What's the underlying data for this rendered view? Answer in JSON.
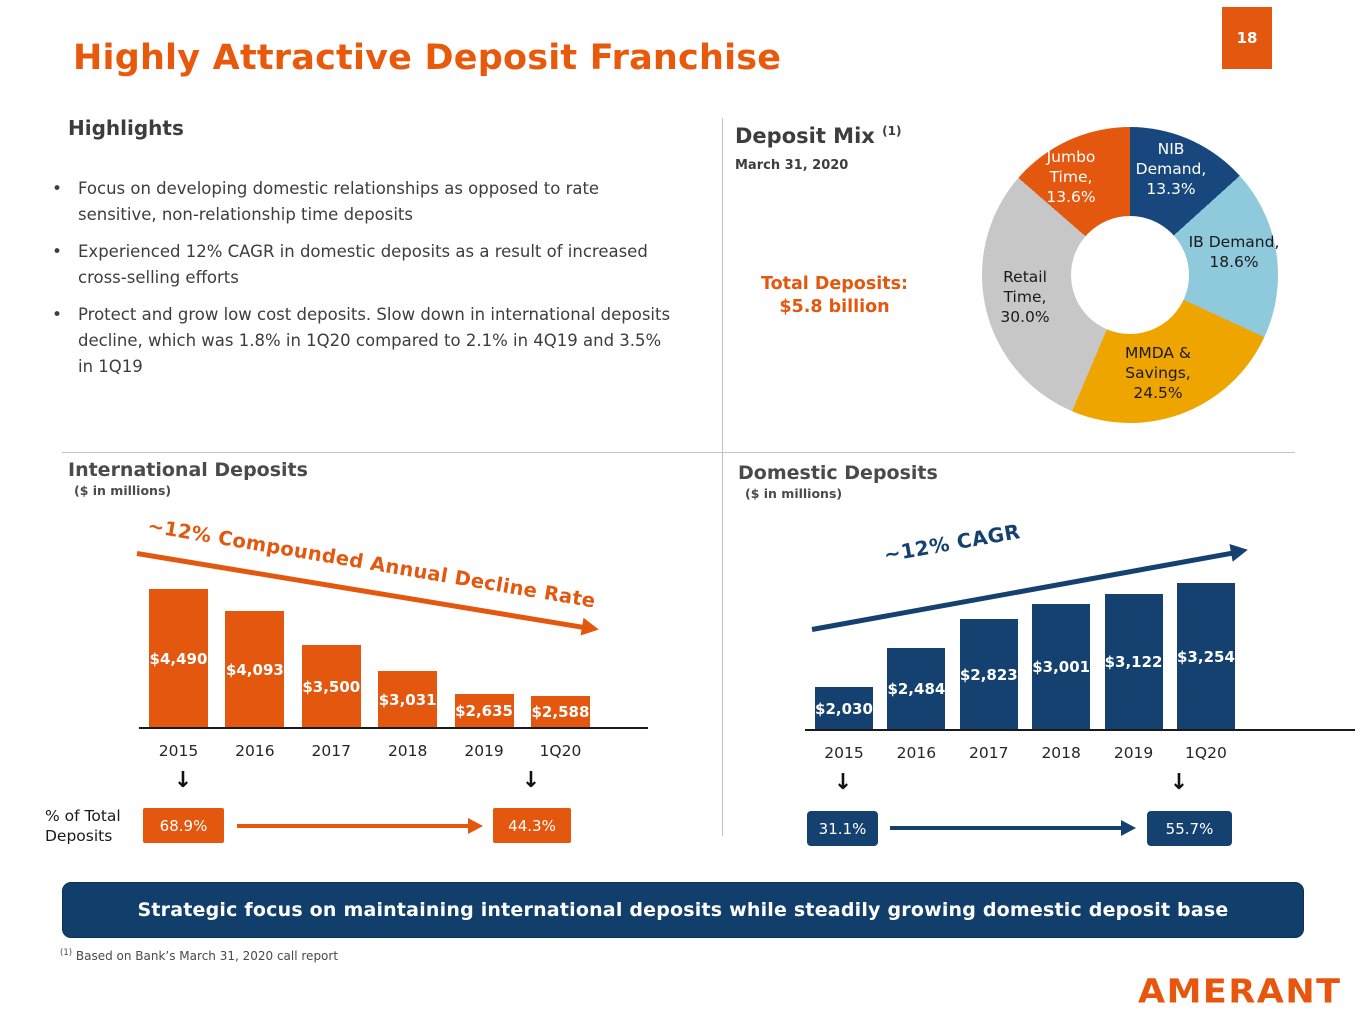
{
  "page_number": "18",
  "title": "Highly Attractive Deposit Franchise",
  "colors": {
    "orange": "#E4570E",
    "navy": "#14416F",
    "banner_navy": "#123E6B",
    "donut_navy": "#17477D",
    "light_blue": "#8FC9DC",
    "gold": "#EFA500",
    "gray": "#C7C7C7"
  },
  "highlights": {
    "heading": "Highlights",
    "bullets": [
      "Focus on developing domestic relationships as opposed to rate sensitive, non-relationship time deposits",
      "Experienced 12% CAGR in domestic deposits as a result of increased cross-selling efforts",
      "Protect and grow low cost deposits. Slow down in international deposits decline, which was 1.8% in 1Q20 compared to 2.1% in 4Q19 and 3.5% in 1Q19"
    ]
  },
  "deposit_mix": {
    "heading": "Deposit Mix",
    "footnote_ref": "(1)",
    "date": "March 31, 2020",
    "total_label": "Total Deposits:",
    "total_value": "$5.8 billion"
  },
  "chart_data": [
    {
      "type": "pie",
      "title": "Deposit Mix",
      "as_of": "March 31, 2020",
      "total": "$5.8 billion",
      "donut": true,
      "start_angle": "top",
      "direction": "clockwise",
      "segments": [
        {
          "label": "NIB Demand",
          "value": 13.3,
          "color": "#17477D",
          "text_color": "#FFFFFF"
        },
        {
          "label": "IB Demand",
          "value": 18.6,
          "color": "#8FC9DC",
          "text_color": "#1A1A1A"
        },
        {
          "label": "MMDA & Savings",
          "value": 24.5,
          "color": "#EFA500",
          "text_color": "#1A1A1A"
        },
        {
          "label": "Retail Time",
          "value": 30.0,
          "color": "#C7C7C7",
          "text_color": "#1A1A1A"
        },
        {
          "label": "Jumbo Time",
          "value": 13.6,
          "color": "#E4570E",
          "text_color": "#FFFFFF"
        }
      ]
    },
    {
      "type": "bar",
      "title": "International Deposits",
      "units": "($ in millions)",
      "categories": [
        "2015",
        "2016",
        "2017",
        "2018",
        "2019",
        "1Q20"
      ],
      "values": [
        4490,
        4093,
        3500,
        3031,
        2635,
        2588
      ],
      "bar_color": "#E4570E",
      "annotation": "~12% Compounded Annual Decline Rate",
      "share": {
        "label": "% of Total Deposits",
        "from": "68.9%",
        "to": "44.3%"
      }
    },
    {
      "type": "bar",
      "title": "Domestic Deposits",
      "units": "($ in millions)",
      "categories": [
        "2015",
        "2016",
        "2017",
        "2018",
        "2019",
        "1Q20"
      ],
      "values": [
        2030,
        2484,
        2823,
        3001,
        3122,
        3254
      ],
      "bar_color": "#14416F",
      "annotation": "~12% CAGR",
      "share": {
        "from": "31.1%",
        "to": "55.7%"
      }
    }
  ],
  "icons": {
    "down_arrow": "↓"
  },
  "banner": "Strategic focus on maintaining international deposits while steadily growing domestic deposit base",
  "footnote": {
    "ref": "(1)",
    "text": "Based on Bank’s March 31, 2020 call report"
  },
  "logo_text": "AMERANT"
}
